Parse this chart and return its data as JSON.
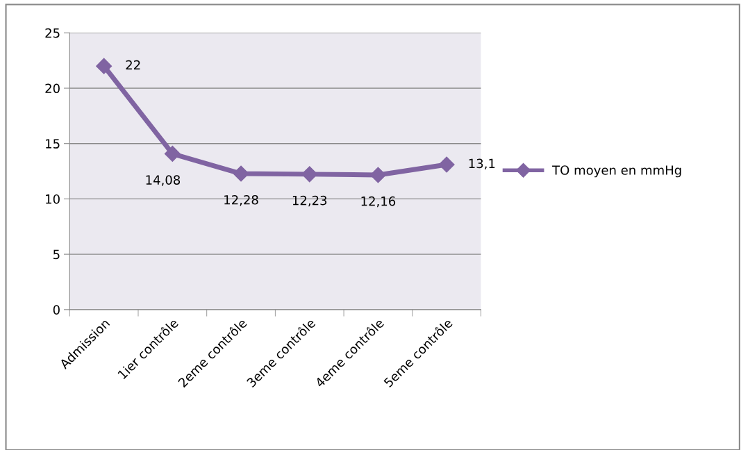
{
  "chart_data": {
    "type": "line",
    "categories": [
      "Admission",
      "1ier contrôle",
      "2eme contrôle",
      "3eme contrôle",
      "4eme contrôle",
      "5eme contrôle"
    ],
    "series": [
      {
        "name": "TO moyen en mmHg",
        "color": "#8064a2",
        "values": [
          22,
          14.08,
          12.28,
          12.23,
          12.16,
          13.1
        ],
        "value_labels": [
          "22",
          "14,08",
          "12,28",
          "12,23",
          "12,16",
          "13,1"
        ]
      }
    ],
    "ylim": [
      0,
      25
    ],
    "yticks": [
      0,
      5,
      10,
      15,
      20,
      25
    ],
    "grid": "y",
    "legend": "right",
    "marker": "diamond",
    "line_style": "solid"
  }
}
